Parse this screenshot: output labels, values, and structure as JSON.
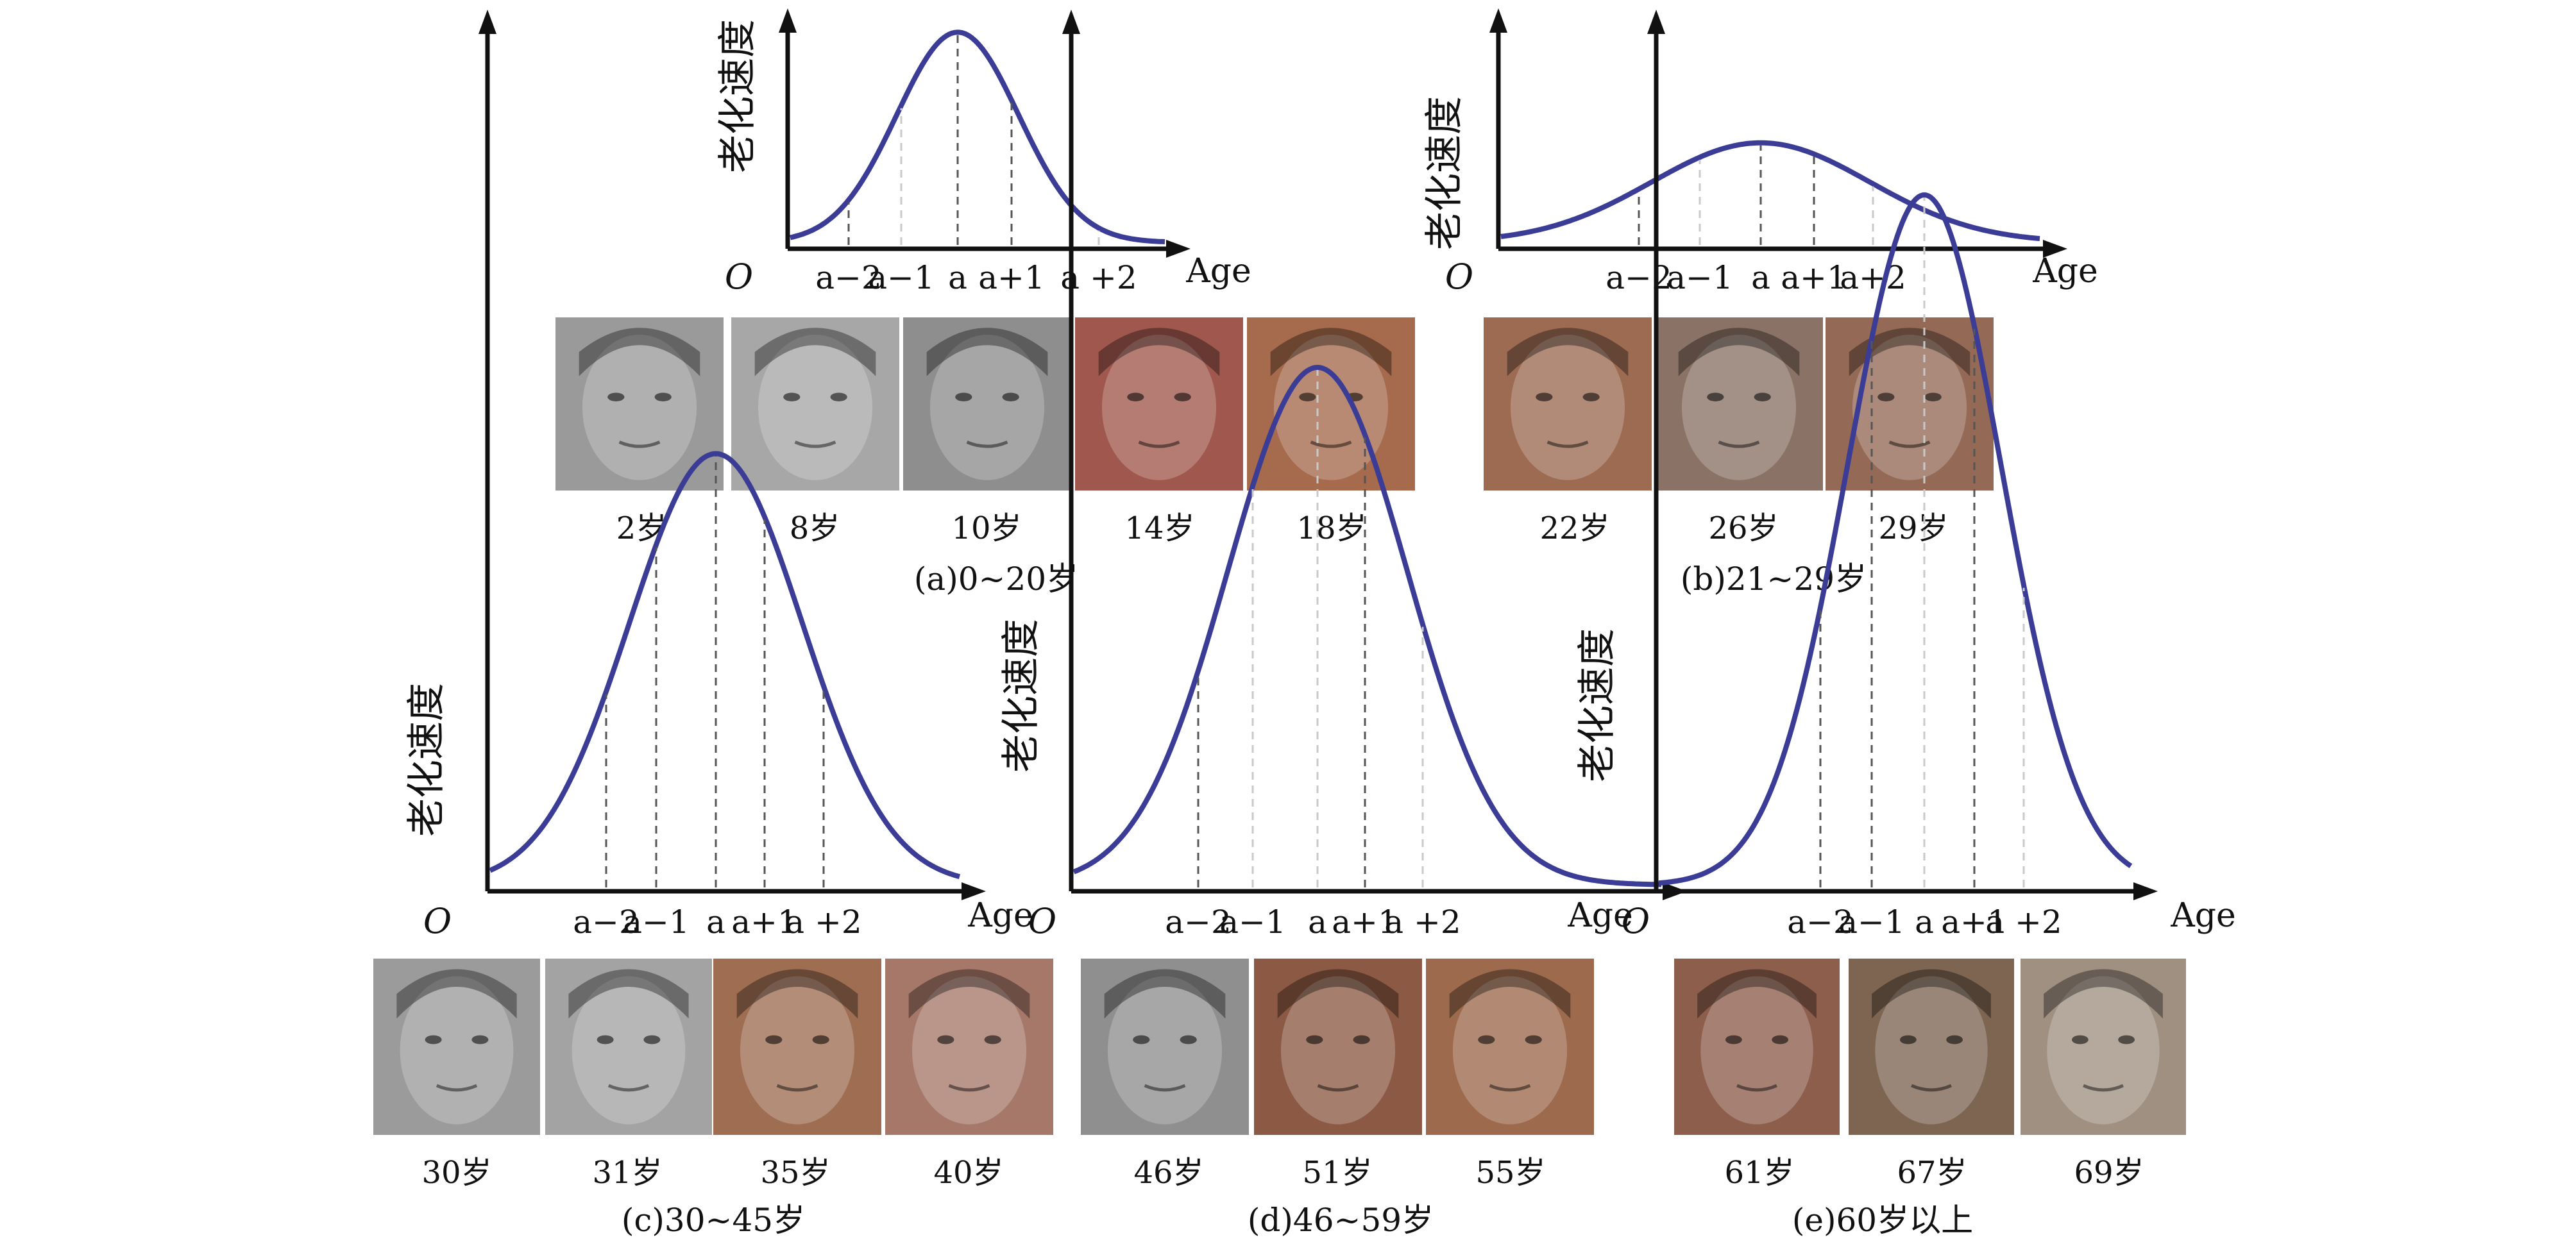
{
  "y_axis_label": "老化速度",
  "x_axis_label": "Age",
  "origin_label": "O",
  "colors": {
    "curve": "#3a3c96",
    "axis": "#111111"
  },
  "panels": [
    {
      "id": "a",
      "caption": "(a)0~20岁",
      "tick_labels": [
        "a−2",
        "a−1",
        "a",
        "a+1",
        "a +2"
      ],
      "curve_peak_level": 0.95,
      "photos": [
        {
          "label": "2岁",
          "tone": "#9a9a9a"
        },
        {
          "label": "8岁",
          "tone": "#a7a7a7"
        },
        {
          "label": "10岁",
          "tone": "#8e8e8e"
        },
        {
          "label": "14岁",
          "tone": "#a0584e"
        },
        {
          "label": "18岁",
          "tone": "#a66a4c"
        }
      ]
    },
    {
      "id": "b",
      "caption": "(b)21~29岁",
      "tick_labels": [
        "a−2",
        "a−1",
        "a",
        "a+1",
        "a+2"
      ],
      "curve_peak_level": 0.45,
      "photos": [
        {
          "label": "22岁",
          "tone": "#9c6b52"
        },
        {
          "label": "26岁",
          "tone": "#8a7266"
        },
        {
          "label": "29岁",
          "tone": "#946a56"
        }
      ]
    },
    {
      "id": "c",
      "caption": "(c)30~45岁",
      "tick_labels": [
        "a−2",
        "a−1",
        "a",
        "a+1",
        "a +2"
      ],
      "curve_peak_level": 0.5,
      "photos": [
        {
          "label": "30岁",
          "tone": "#9b9b9b"
        },
        {
          "label": "31岁",
          "tone": "#a3a3a3"
        },
        {
          "label": "35岁",
          "tone": "#9e6d52"
        },
        {
          "label": "40岁",
          "tone": "#a6786a"
        }
      ]
    },
    {
      "id": "d",
      "caption": "(d)46~59岁",
      "tick_labels": [
        "a−2",
        "a−1",
        "a",
        "a+1",
        "a +2"
      ],
      "curve_peak_level": 0.6,
      "photos": [
        {
          "label": "46岁",
          "tone": "#8f8f8f"
        },
        {
          "label": "51岁",
          "tone": "#8c5a44"
        },
        {
          "label": "55岁",
          "tone": "#9d6a4e"
        }
      ]
    },
    {
      "id": "e",
      "caption": "(e)60岁以上",
      "tick_labels": [
        "a−2",
        "a−1",
        "a",
        "a+1",
        "a +2"
      ],
      "curve_peak_level": 0.8,
      "photos": [
        {
          "label": "61岁",
          "tone": "#8e5e4c"
        },
        {
          "label": "67岁",
          "tone": "#7d6552"
        },
        {
          "label": "69岁",
          "tone": "#a09082"
        }
      ]
    }
  ]
}
